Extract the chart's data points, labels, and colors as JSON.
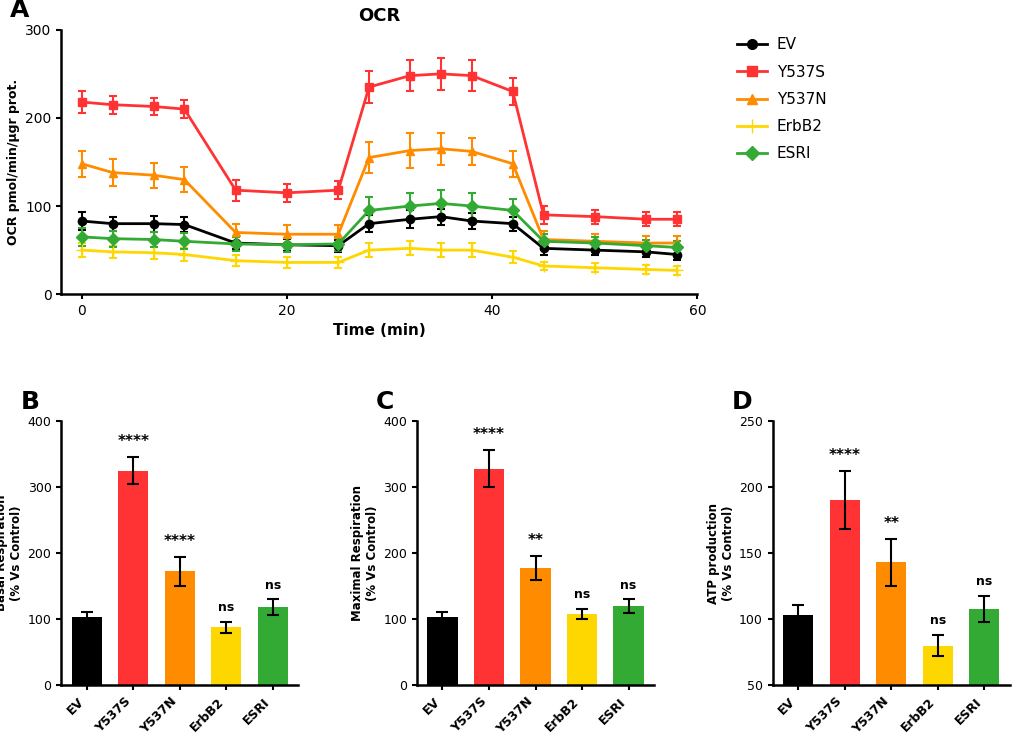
{
  "line_title": "OCR",
  "line_xlabel": "Time (min)",
  "line_ylabel": "OCR pmol/min/μgr prot.",
  "line_xlim": [
    -2,
    60
  ],
  "line_ylim": [
    0,
    300
  ],
  "line_yticks": [
    0,
    100,
    200,
    300
  ],
  "line_xticks": [
    0,
    20,
    40,
    60
  ],
  "series": {
    "EV": {
      "color": "#000000",
      "marker": "o",
      "x": [
        0,
        3,
        7,
        10,
        15,
        20,
        25,
        28,
        32,
        35,
        38,
        42,
        45,
        50,
        55,
        58
      ],
      "y": [
        83,
        80,
        80,
        79,
        58,
        56,
        55,
        80,
        85,
        88,
        83,
        80,
        52,
        50,
        48,
        45
      ],
      "yerr": [
        10,
        8,
        9,
        8,
        7,
        7,
        7,
        10,
        10,
        9,
        9,
        8,
        7,
        6,
        6,
        6
      ]
    },
    "Y537S": {
      "color": "#FF3333",
      "marker": "s",
      "x": [
        0,
        3,
        7,
        10,
        15,
        20,
        25,
        28,
        32,
        35,
        38,
        42,
        45,
        50,
        55,
        58
      ],
      "y": [
        218,
        215,
        213,
        210,
        118,
        115,
        118,
        235,
        248,
        250,
        248,
        230,
        90,
        88,
        85,
        85
      ],
      "yerr": [
        12,
        10,
        10,
        10,
        12,
        10,
        10,
        18,
        18,
        18,
        18,
        15,
        10,
        8,
        8,
        8
      ]
    },
    "Y537N": {
      "color": "#FF8C00",
      "marker": "^",
      "x": [
        0,
        3,
        7,
        10,
        15,
        20,
        25,
        28,
        32,
        35,
        38,
        42,
        45,
        50,
        55,
        58
      ],
      "y": [
        148,
        138,
        135,
        130,
        70,
        68,
        68,
        155,
        163,
        165,
        162,
        148,
        62,
        60,
        58,
        58
      ],
      "yerr": [
        15,
        15,
        14,
        14,
        10,
        10,
        10,
        18,
        20,
        18,
        15,
        15,
        10,
        8,
        8,
        8
      ]
    },
    "ErbB2": {
      "color": "#FFD700",
      "marker": "+",
      "x": [
        0,
        3,
        7,
        10,
        15,
        20,
        25,
        28,
        32,
        35,
        38,
        42,
        45,
        50,
        55,
        58
      ],
      "y": [
        50,
        48,
        47,
        45,
        38,
        36,
        36,
        50,
        52,
        50,
        50,
        42,
        32,
        30,
        28,
        27
      ],
      "yerr": [
        8,
        7,
        7,
        7,
        6,
        6,
        6,
        8,
        8,
        8,
        8,
        7,
        5,
        5,
        5,
        5
      ]
    },
    "ESRI": {
      "color": "#33AA33",
      "marker": "D",
      "x": [
        0,
        3,
        7,
        10,
        15,
        20,
        25,
        28,
        32,
        35,
        38,
        42,
        45,
        50,
        55,
        58
      ],
      "y": [
        65,
        63,
        62,
        60,
        57,
        56,
        57,
        95,
        100,
        103,
        100,
        95,
        60,
        58,
        55,
        53
      ],
      "yerr": [
        10,
        9,
        9,
        9,
        8,
        8,
        8,
        15,
        15,
        15,
        15,
        13,
        8,
        7,
        7,
        7
      ]
    }
  },
  "series_order": [
    "EV",
    "Y537S",
    "Y537N",
    "ErbB2",
    "ESRI"
  ],
  "bar_categories": [
    "EV",
    "Y537S",
    "Y537N",
    "ErbB2",
    "ESRI"
  ],
  "bar_colors": [
    "#000000",
    "#FF3333",
    "#FF8C00",
    "#FFD700",
    "#33AA33"
  ],
  "panel_B": {
    "ylabel": "Basal Respiration\n(% Vs Control)",
    "ylim": [
      0,
      400
    ],
    "yticks": [
      0,
      100,
      200,
      300,
      400
    ],
    "values": [
      103,
      325,
      173,
      88,
      118
    ],
    "errors": [
      8,
      20,
      22,
      8,
      12
    ],
    "annotations": [
      "",
      "****",
      "****",
      "ns",
      "ns"
    ]
  },
  "panel_C": {
    "ylabel": "Maximal Respiration\n(% Vs Control)",
    "ylim": [
      0,
      400
    ],
    "yticks": [
      0,
      100,
      200,
      300,
      400
    ],
    "values": [
      103,
      328,
      178,
      108,
      120
    ],
    "errors": [
      8,
      28,
      18,
      8,
      10
    ],
    "annotations": [
      "",
      "****",
      "**",
      "ns",
      "ns"
    ]
  },
  "panel_D": {
    "ylabel": "ATP production\n(% Vs Control)",
    "ylim": [
      50,
      250
    ],
    "yticks": [
      50,
      100,
      150,
      200,
      250
    ],
    "values": [
      103,
      190,
      143,
      80,
      108
    ],
    "errors": [
      8,
      22,
      18,
      8,
      10
    ],
    "annotations": [
      "",
      "****",
      "**",
      "ns",
      "ns"
    ]
  },
  "background_color": "#ffffff"
}
